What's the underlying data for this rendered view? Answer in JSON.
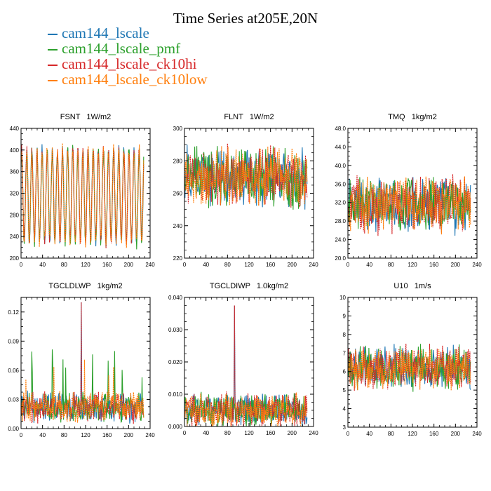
{
  "title": "Time Series at205E,20N",
  "colors": {
    "s1": "#1f77b4",
    "s2": "#2ca02c",
    "s3": "#d62728",
    "s4": "#ff7f0e"
  },
  "legend": [
    {
      "name": "cam144_lscale",
      "color": "#1f77b4"
    },
    {
      "name": "cam144_lscale_pmf",
      "color": "#2ca02c"
    },
    {
      "name": "cam144_lscale_ck10hi",
      "color": "#d62728"
    },
    {
      "name": "cam144_lscale_ck10low",
      "color": "#ff7f0e"
    }
  ],
  "chart_data": [
    {
      "type": "line",
      "title": "FSNT   1W/m2",
      "xlim": [
        0,
        240
      ],
      "ylim": [
        200,
        440
      ],
      "xticks": [
        "0",
        "40",
        "80",
        "120",
        "160",
        "200",
        "240"
      ],
      "yticks": [
        "200",
        "240",
        "280",
        "320",
        "360",
        "400",
        "440"
      ],
      "series_names": [
        "cam144_lscale",
        "cam144_lscale_pmf",
        "cam144_lscale_ck10hi",
        "cam144_lscale_ck10low"
      ],
      "approx_pattern": {
        "x_max": 228,
        "mean": 315,
        "amplitude": 85,
        "period": 9.5,
        "noise": 10
      }
    },
    {
      "type": "line",
      "title": "FLNT   1W/m2",
      "xlim": [
        0,
        240
      ],
      "ylim": [
        220,
        300
      ],
      "xticks": [
        "0",
        "40",
        "80",
        "120",
        "160",
        "200",
        "240"
      ],
      "yticks": [
        "220",
        "240",
        "260",
        "280",
        "300"
      ],
      "series_names": [
        "cam144_lscale",
        "cam144_lscale_pmf",
        "cam144_lscale_ck10hi",
        "cam144_lscale_ck10low"
      ],
      "approx_pattern": {
        "x_max": 228,
        "mean": 270,
        "amplitude": 0,
        "period": 0,
        "noise": 14
      }
    },
    {
      "type": "line",
      "title": "TMQ   1kg/m2",
      "xlim": [
        0,
        240
      ],
      "ylim": [
        20.0,
        48.0
      ],
      "xticks": [
        "0",
        "40",
        "80",
        "120",
        "160",
        "200",
        "240"
      ],
      "yticks": [
        "20.0",
        "24.0",
        "28.0",
        "32.0",
        "36.0",
        "40.0",
        "44.0",
        "48.0"
      ],
      "series_names": [
        "cam144_lscale",
        "cam144_lscale_pmf",
        "cam144_lscale_ck10hi",
        "cam144_lscale_ck10low"
      ],
      "approx_pattern": {
        "x_max": 228,
        "mean": 31.5,
        "amplitude": 0,
        "period": 0,
        "noise": 4.5
      }
    },
    {
      "type": "line",
      "title": "TGCLDLWP   1kg/m2",
      "xlim": [
        0,
        240
      ],
      "ylim": [
        0.0,
        0.135
      ],
      "xticks": [
        "0",
        "40",
        "80",
        "120",
        "160",
        "200",
        "240"
      ],
      "yticks": [
        "0.00",
        "0.03",
        "0.06",
        "0.09",
        "0.12"
      ],
      "series_names": [
        "cam144_lscale",
        "cam144_lscale_pmf",
        "cam144_lscale_ck10hi",
        "cam144_lscale_ck10low"
      ],
      "approx_pattern": {
        "x_max": 228,
        "mean": 0.022,
        "amplitude": 0,
        "period": 0,
        "noise": 0.012,
        "peak": {
          "x": 112,
          "y": 0.13
        }
      }
    },
    {
      "type": "line",
      "title": "TGCLDIWP   1.0kg/m2",
      "xlim": [
        0,
        240
      ],
      "ylim": [
        0.0,
        0.04
      ],
      "xticks": [
        "0",
        "40",
        "80",
        "120",
        "160",
        "200",
        "240"
      ],
      "yticks": [
        "0.000",
        "0.010",
        "0.020",
        "0.030",
        "0.040"
      ],
      "series_names": [
        "cam144_lscale",
        "cam144_lscale_pmf",
        "cam144_lscale_ck10hi",
        "cam144_lscale_ck10low"
      ],
      "approx_pattern": {
        "x_max": 228,
        "mean": 0.005,
        "amplitude": 0,
        "period": 0,
        "noise": 0.004,
        "peak": {
          "x": 93,
          "y": 0.0375
        }
      }
    },
    {
      "type": "line",
      "title": "U10   1m/s",
      "xlim": [
        0,
        240
      ],
      "ylim": [
        3,
        10
      ],
      "xticks": [
        "0",
        "40",
        "80",
        "120",
        "160",
        "200",
        "240"
      ],
      "yticks": [
        "3",
        "4",
        "5",
        "6",
        "7",
        "8",
        "9",
        "10"
      ],
      "series_names": [
        "cam144_lscale",
        "cam144_lscale_pmf",
        "cam144_lscale_ck10hi",
        "cam144_lscale_ck10low"
      ],
      "approx_pattern": {
        "x_max": 228,
        "mean": 6.2,
        "amplitude": 0,
        "period": 0,
        "noise": 0.9
      }
    }
  ]
}
